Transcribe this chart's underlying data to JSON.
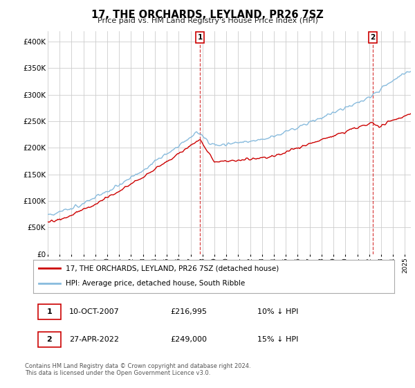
{
  "title": "17, THE ORCHARDS, LEYLAND, PR26 7SZ",
  "subtitle": "Price paid vs. HM Land Registry's House Price Index (HPI)",
  "legend_line1": "17, THE ORCHARDS, LEYLAND, PR26 7SZ (detached house)",
  "legend_line2": "HPI: Average price, detached house, South Ribble",
  "annotation1_date": "10-OCT-2007",
  "annotation1_price": 216995,
  "annotation1_text": "10% ↓ HPI",
  "annotation2_date": "27-APR-2022",
  "annotation2_price": 249000,
  "annotation2_text": "15% ↓ HPI",
  "footnote": "Contains HM Land Registry data © Crown copyright and database right 2024.\nThis data is licensed under the Open Government Licence v3.0.",
  "red_color": "#cc0000",
  "blue_color": "#88bbdd",
  "annotation_color": "#cc0000",
  "ylim_min": 0,
  "ylim_max": 420000,
  "yticks": [
    0,
    50000,
    100000,
    150000,
    200000,
    250000,
    300000,
    350000,
    400000
  ],
  "ytick_labels": [
    "£0",
    "£50K",
    "£100K",
    "£150K",
    "£200K",
    "£250K",
    "£300K",
    "£350K",
    "£400K"
  ],
  "ann1_x": 2007.78,
  "ann2_x": 2022.31,
  "xlim_min": 1995,
  "xlim_max": 2025.5
}
